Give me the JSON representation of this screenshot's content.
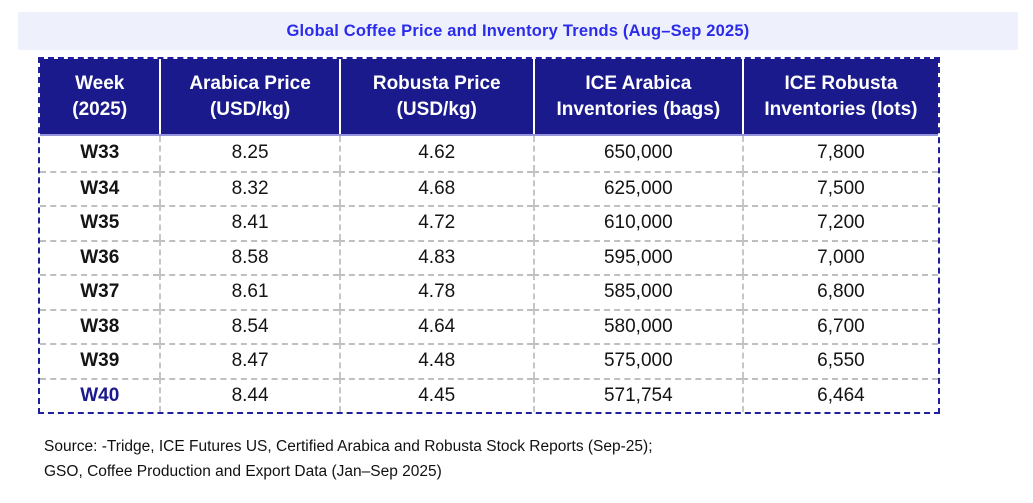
{
  "title": "Global Coffee Price and Inventory Trends (Aug–Sep 2025)",
  "table": {
    "headers": [
      "Week (2025)",
      "Arabica Price (USD/kg)",
      "Robusta Price (USD/kg)",
      "ICE Arabica Inventories (bags)",
      "ICE Robusta Inventories (lots)"
    ],
    "rows": [
      [
        "W33",
        "8.25",
        "4.62",
        "650,000",
        "7,800"
      ],
      [
        "W34",
        "8.32",
        "4.68",
        "625,000",
        "7,500"
      ],
      [
        "W35",
        "8.41",
        "4.72",
        "610,000",
        "7,200"
      ],
      [
        "W36",
        "8.58",
        "4.83",
        "595,000",
        "7,000"
      ],
      [
        "W37",
        "8.61",
        "4.78",
        "585,000",
        "6,800"
      ],
      [
        "W38",
        "8.54",
        "4.64",
        "580,000",
        "6,700"
      ],
      [
        "W39",
        "8.47",
        "4.48",
        "575,000",
        "6,550"
      ],
      [
        "W40",
        "8.44",
        "4.45",
        "571,754",
        "6,464"
      ]
    ],
    "highlighted_week": "W40"
  },
  "source": {
    "line1": "Source: -Tridge, ICE Futures US, Certified Arabica and Robusta Stock Reports (Sep-25);",
    "line2": "GSO, Coffee Production and Export Data (Jan–Sep 2025)"
  },
  "colors": {
    "header_bg": "#1a1a8c",
    "outer_border": "#20209a",
    "title_text": "#2b2beb",
    "title_bg": "#eef1fc",
    "inner_dash": "#c0c0c0",
    "highlight_text": "#1a1a8c"
  },
  "chart_data": {
    "type": "table",
    "title": "Global Coffee Price and Inventory Trends (Aug–Sep 2025)",
    "columns": [
      "Week (2025)",
      "Arabica Price (USD/kg)",
      "Robusta Price (USD/kg)",
      "ICE Arabica Inventories (bags)",
      "ICE Robusta Inventories (lots)"
    ],
    "categories": [
      "W33",
      "W34",
      "W35",
      "W36",
      "W37",
      "W38",
      "W39",
      "W40"
    ],
    "series": [
      {
        "name": "Arabica Price (USD/kg)",
        "values": [
          8.25,
          8.32,
          8.41,
          8.58,
          8.61,
          8.54,
          8.47,
          8.44
        ]
      },
      {
        "name": "Robusta Price (USD/kg)",
        "values": [
          4.62,
          4.68,
          4.72,
          4.83,
          4.78,
          4.64,
          4.48,
          4.45
        ]
      },
      {
        "name": "ICE Arabica Inventories (bags)",
        "values": [
          650000,
          625000,
          610000,
          595000,
          585000,
          580000,
          575000,
          571754
        ]
      },
      {
        "name": "ICE Robusta Inventories (lots)",
        "values": [
          7800,
          7500,
          7200,
          7000,
          6800,
          6700,
          6550,
          6464
        ]
      }
    ]
  }
}
